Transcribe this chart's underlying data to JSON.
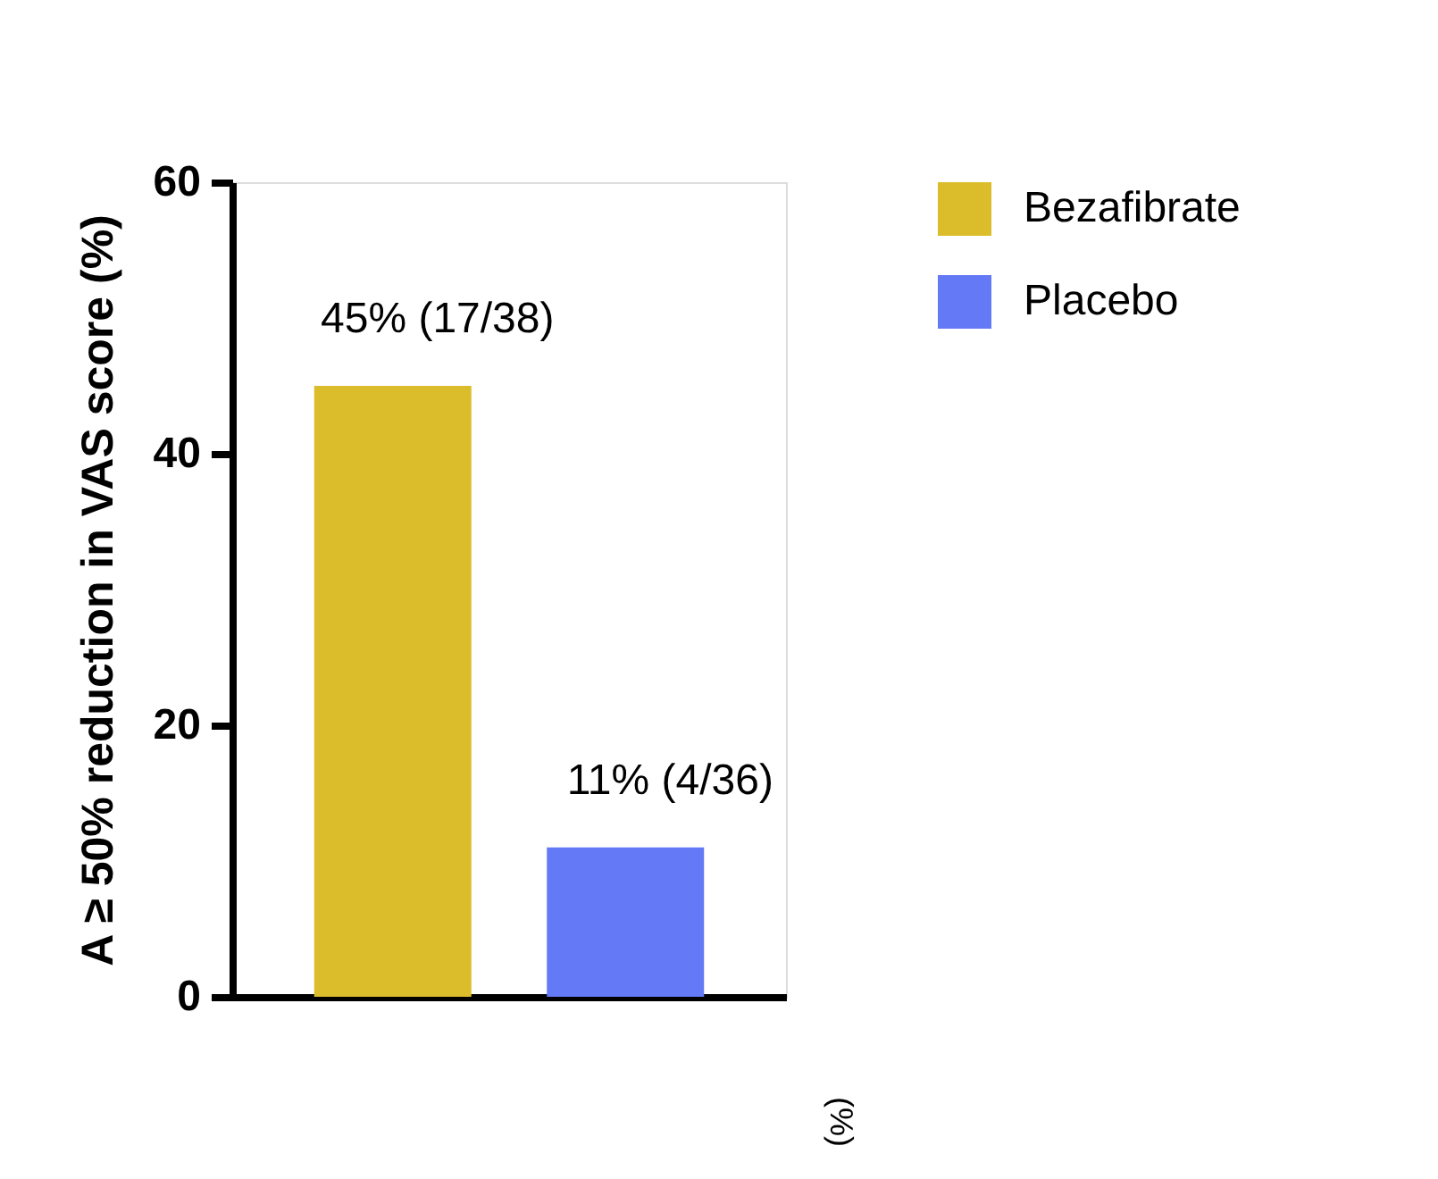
{
  "chart_data": {
    "type": "bar",
    "ylabel": "A ≥ 50% reduction in VAS score (%)",
    "categories": [
      null,
      null
    ],
    "series": [
      {
        "name": "Bezafibrate",
        "color": "#dbbd2b",
        "values": [
          45,
          null
        ],
        "value_labels": [
          "45% (17/38)",
          null
        ]
      },
      {
        "name": "Placebo",
        "color": "#6479f5",
        "values": [
          null,
          11
        ],
        "value_labels": [
          null,
          "11% (4/36)"
        ]
      }
    ],
    "ylim": [
      0,
      60
    ],
    "yticks": [
      0,
      20,
      40,
      60
    ],
    "grid": false,
    "legend": "top right",
    "tick_labels": "y",
    "annotations": [
      "(%)"
    ]
  }
}
